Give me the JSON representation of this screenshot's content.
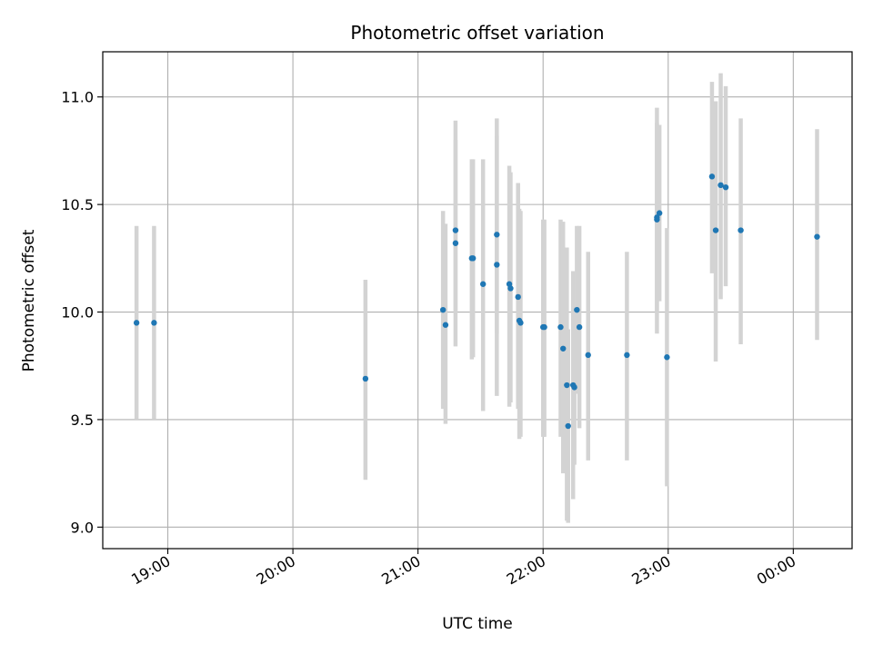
{
  "chart_data": {
    "type": "scatter",
    "title": "Photometric offset variation",
    "xlabel": "UTC time",
    "ylabel": "Photometric offset",
    "x_unit": "hours UTC (values past 24 = after midnight)",
    "xlim": [
      18.48,
      24.47
    ],
    "ylim": [
      8.9,
      11.21
    ],
    "x_ticks": [
      {
        "value": 19,
        "label": "19:00"
      },
      {
        "value": 20,
        "label": "20:00"
      },
      {
        "value": 21,
        "label": "21:00"
      },
      {
        "value": 22,
        "label": "22:00"
      },
      {
        "value": 23,
        "label": "23:00"
      },
      {
        "value": 24,
        "label": "00:00"
      }
    ],
    "y_ticks": [
      {
        "value": 9.0,
        "label": "9.0"
      },
      {
        "value": 9.5,
        "label": "9.5"
      },
      {
        "value": 10.0,
        "label": "10.0"
      },
      {
        "value": 10.5,
        "label": "10.5"
      },
      {
        "value": 11.0,
        "label": "11.0"
      }
    ],
    "grid": true,
    "point_color": "#1f77b4",
    "errorbar_color": "#d3d3d3",
    "points": [
      {
        "time": "18:45",
        "x": 18.75,
        "y": 9.95,
        "ylo": 9.5,
        "yhi": 10.4
      },
      {
        "time": "18:53",
        "x": 18.89,
        "y": 9.95,
        "ylo": 9.5,
        "yhi": 10.4
      },
      {
        "time": "20:35",
        "x": 20.58,
        "y": 9.69,
        "ylo": 9.22,
        "yhi": 10.15
      },
      {
        "time": "21:12",
        "x": 21.2,
        "y": 10.01,
        "ylo": 9.55,
        "yhi": 10.47
      },
      {
        "time": "21:13",
        "x": 21.22,
        "y": 9.94,
        "ylo": 9.48,
        "yhi": 10.41
      },
      {
        "time": "21:18",
        "x": 21.3,
        "y": 10.38,
        "ylo": 10.0,
        "yhi": 10.89
      },
      {
        "time": "21:18",
        "x": 21.3,
        "y": 10.32,
        "ylo": 9.84,
        "yhi": 10.8
      },
      {
        "time": "21:26",
        "x": 21.43,
        "y": 10.25,
        "ylo": 9.78,
        "yhi": 10.71
      },
      {
        "time": "21:27",
        "x": 21.44,
        "y": 10.25,
        "ylo": 9.79,
        "yhi": 10.71
      },
      {
        "time": "21:31",
        "x": 21.52,
        "y": 10.13,
        "ylo": 9.54,
        "yhi": 10.71
      },
      {
        "time": "21:38",
        "x": 21.63,
        "y": 10.36,
        "ylo": 9.9,
        "yhi": 10.9
      },
      {
        "time": "21:38",
        "x": 21.63,
        "y": 10.22,
        "ylo": 9.61,
        "yhi": 10.82
      },
      {
        "time": "21:44",
        "x": 21.73,
        "y": 10.13,
        "ylo": 9.56,
        "yhi": 10.68
      },
      {
        "time": "21:44",
        "x": 21.74,
        "y": 10.11,
        "ylo": 9.58,
        "yhi": 10.65
      },
      {
        "time": "21:48",
        "x": 21.8,
        "y": 10.07,
        "ylo": 9.55,
        "yhi": 10.6
      },
      {
        "time": "21:49",
        "x": 21.81,
        "y": 9.96,
        "ylo": 9.41,
        "yhi": 10.48
      },
      {
        "time": "21:49",
        "x": 21.82,
        "y": 9.95,
        "ylo": 9.42,
        "yhi": 10.47
      },
      {
        "time": "22:00",
        "x": 22.0,
        "y": 9.93,
        "ylo": 9.42,
        "yhi": 10.43
      },
      {
        "time": "22:00",
        "x": 22.01,
        "y": 9.93,
        "ylo": 9.42,
        "yhi": 10.43
      },
      {
        "time": "22:08",
        "x": 22.14,
        "y": 9.93,
        "ylo": 9.42,
        "yhi": 10.43
      },
      {
        "time": "22:10",
        "x": 22.16,
        "y": 9.83,
        "ylo": 9.25,
        "yhi": 10.42
      },
      {
        "time": "22:11",
        "x": 22.19,
        "y": 9.66,
        "ylo": 9.03,
        "yhi": 10.3
      },
      {
        "time": "22:12",
        "x": 22.2,
        "y": 9.47,
        "ylo": 9.02,
        "yhi": 9.92
      },
      {
        "time": "22:14",
        "x": 22.24,
        "y": 9.66,
        "ylo": 9.13,
        "yhi": 10.19
      },
      {
        "time": "22:15",
        "x": 22.25,
        "y": 9.65,
        "ylo": 9.29,
        "yhi": 10.01
      },
      {
        "time": "22:16",
        "x": 22.27,
        "y": 10.01,
        "ylo": 9.62,
        "yhi": 10.4
      },
      {
        "time": "22:17",
        "x": 22.29,
        "y": 9.93,
        "ylo": 9.46,
        "yhi": 10.4
      },
      {
        "time": "22:22",
        "x": 22.36,
        "y": 9.8,
        "ylo": 9.31,
        "yhi": 10.28
      },
      {
        "time": "22:40",
        "x": 22.67,
        "y": 9.8,
        "ylo": 9.31,
        "yhi": 10.28
      },
      {
        "time": "22:55",
        "x": 22.91,
        "y": 10.43,
        "ylo": 9.9,
        "yhi": 10.95
      },
      {
        "time": "22:55",
        "x": 22.91,
        "y": 10.44,
        "ylo": 10.0,
        "yhi": 10.88
      },
      {
        "time": "22:56",
        "x": 22.93,
        "y": 10.46,
        "ylo": 10.05,
        "yhi": 10.87
      },
      {
        "time": "22:59",
        "x": 22.99,
        "y": 9.79,
        "ylo": 9.19,
        "yhi": 10.39
      },
      {
        "time": "23:21",
        "x": 23.35,
        "y": 10.63,
        "ylo": 10.18,
        "yhi": 11.07
      },
      {
        "time": "23:23",
        "x": 23.38,
        "y": 10.38,
        "ylo": 9.77,
        "yhi": 10.98
      },
      {
        "time": "23:25",
        "x": 23.42,
        "y": 10.59,
        "ylo": 10.06,
        "yhi": 11.11
      },
      {
        "time": "23:28",
        "x": 23.46,
        "y": 10.58,
        "ylo": 10.12,
        "yhi": 11.05
      },
      {
        "time": "23:35",
        "x": 23.58,
        "y": 10.38,
        "ylo": 9.85,
        "yhi": 10.9
      },
      {
        "time": "00:11",
        "x": 24.19,
        "y": 10.35,
        "ylo": 9.87,
        "yhi": 10.85
      }
    ]
  }
}
